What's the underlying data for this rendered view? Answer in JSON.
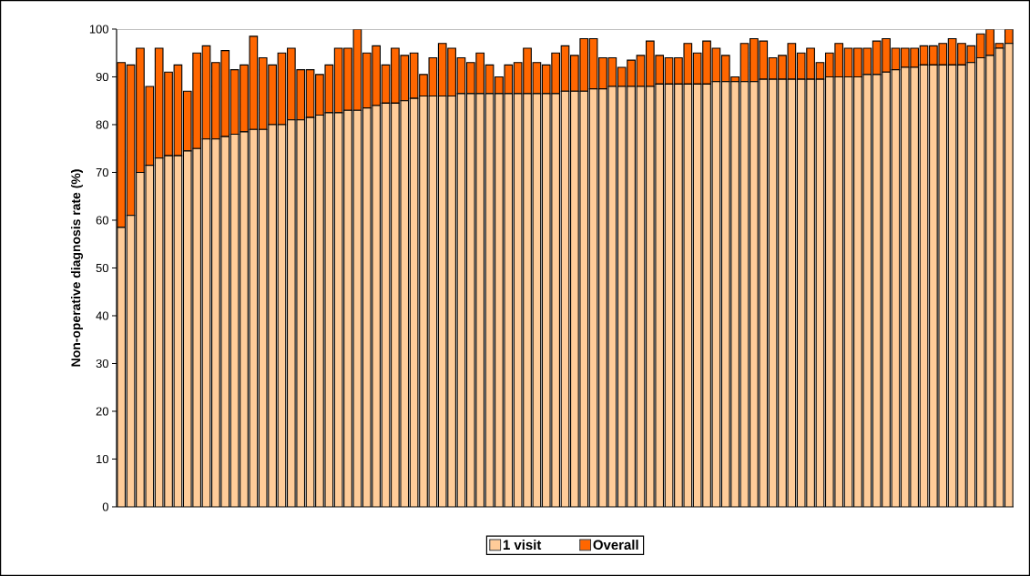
{
  "chart_data": {
    "type": "bar",
    "stacked": true,
    "ylabel": "Non-operative diagnosis rate (%)",
    "categories": [
      null,
      null,
      null,
      null,
      null,
      null,
      null,
      null,
      null,
      null,
      null,
      null,
      null,
      null,
      null,
      null,
      null,
      null,
      null,
      null,
      null,
      null,
      null,
      null,
      null,
      null,
      null,
      null,
      null,
      null,
      null,
      null,
      null,
      null,
      null,
      null,
      null,
      null,
      null,
      null,
      null,
      null,
      null,
      null,
      null,
      null,
      null,
      null,
      null,
      null,
      null,
      null,
      null,
      null,
      null,
      null,
      null,
      null,
      null,
      null,
      null,
      null,
      null,
      null,
      null,
      null,
      null,
      null,
      null,
      null,
      null,
      null,
      null,
      null,
      null,
      null,
      null,
      null,
      null,
      null,
      null,
      null,
      null,
      null,
      null,
      null,
      null,
      null,
      null,
      null,
      null,
      null,
      null,
      null,
      null
    ],
    "series": [
      {
        "name": "1 visit",
        "color": "#ffcc99",
        "values": [
          58.5,
          61,
          70,
          71.5,
          73,
          73.5,
          73.5,
          74.5,
          75,
          77,
          77,
          77.5,
          78,
          78.5,
          79,
          79,
          80,
          80,
          81,
          81,
          81.5,
          82,
          82.5,
          82.5,
          83,
          83,
          83.5,
          84,
          84.5,
          84.5,
          85,
          85.5,
          86,
          86,
          86,
          86,
          86.5,
          86.5,
          86.5,
          86.5,
          86.5,
          86.5,
          86.5,
          86.5,
          86.5,
          86.5,
          86.5,
          87,
          87,
          87,
          87.5,
          87.5,
          88,
          88,
          88,
          88,
          88,
          88.5,
          88.5,
          88.5,
          88.5,
          88.5,
          88.5,
          89,
          89,
          89,
          89,
          89,
          89.5,
          89.5,
          89.5,
          89.5,
          89.5,
          89.5,
          89.5,
          90,
          90,
          90,
          90,
          90.5,
          90.5,
          91,
          91.5,
          92,
          92,
          92.5,
          92.5,
          92.5,
          92.5,
          92.5,
          93,
          94,
          94.5,
          96,
          97
        ]
      },
      {
        "name": "Overall",
        "color": "#ff6600",
        "values": [
          34.5,
          31.5,
          26,
          16.5,
          23,
          17.5,
          19,
          12.5,
          20,
          19.5,
          16,
          18,
          13.5,
          14,
          19.5,
          15,
          12.5,
          15,
          15,
          10.5,
          10,
          8.5,
          10,
          13.5,
          13,
          17,
          11.5,
          12.5,
          8,
          11.5,
          9.5,
          9.5,
          4.5,
          8,
          11,
          10,
          7.5,
          6.5,
          8.5,
          6,
          3.5,
          6,
          6.5,
          9.5,
          6.5,
          6,
          8.5,
          9.5,
          7.5,
          11,
          10.5,
          6.5,
          6,
          4,
          5.5,
          6.5,
          9.5,
          6,
          5.5,
          5.5,
          8.5,
          6.5,
          9,
          7,
          5.5,
          1,
          8,
          9,
          8,
          4.5,
          5,
          7.5,
          5.5,
          6.5,
          3.5,
          5,
          7,
          6,
          6,
          5.5,
          7,
          7,
          4.5,
          4,
          4,
          4,
          4,
          4.5,
          5.5,
          4.5,
          3.5,
          5,
          5.5,
          1,
          3
        ]
      }
    ],
    "ylim": [
      0,
      100
    ],
    "yticks": [
      0,
      10,
      20,
      30,
      40,
      50,
      60,
      70,
      80,
      90,
      100
    ],
    "legend": "bottom"
  }
}
